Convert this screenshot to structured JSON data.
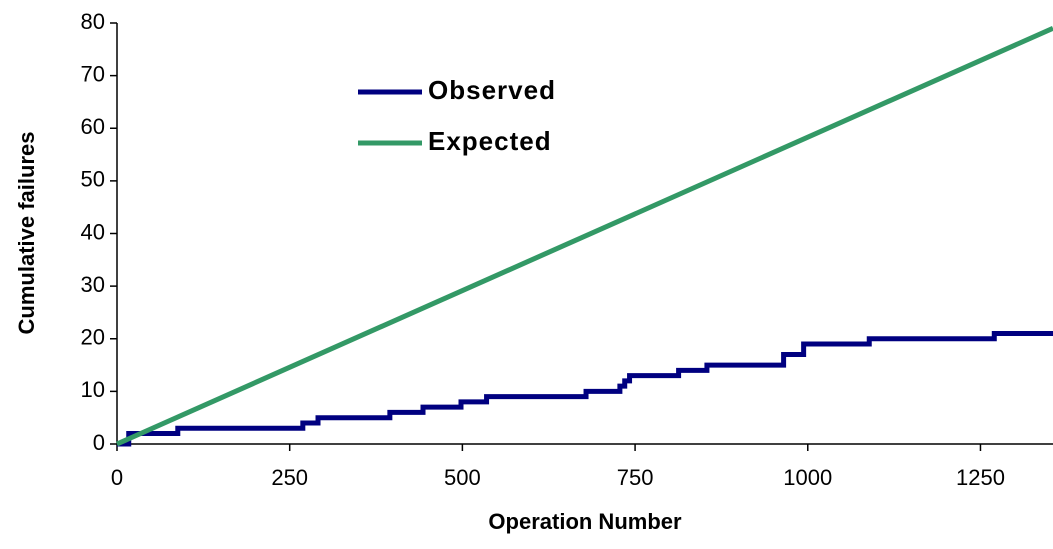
{
  "chart_data": {
    "type": "line",
    "xlabel": "Operation Number",
    "ylabel": "Cumulative failures",
    "xlim": [
      0,
      1355
    ],
    "ylim": [
      0,
      80
    ],
    "xticks": [
      0,
      250,
      500,
      750,
      1000,
      1250
    ],
    "yticks": [
      0,
      10,
      20,
      30,
      40,
      50,
      60,
      70,
      80
    ],
    "series": [
      {
        "name": "Observed",
        "color": "#000080",
        "x": [
          0,
          17,
          17,
          88,
          88,
          269,
          269,
          291,
          291,
          395,
          395,
          443,
          443,
          498,
          498,
          535,
          535,
          679,
          679,
          728,
          728,
          735,
          735,
          742,
          742,
          813,
          813,
          854,
          854,
          965,
          965,
          994,
          994,
          1089,
          1089,
          1270,
          1270,
          1355
        ],
        "values": [
          0,
          0,
          2,
          2,
          3,
          3,
          4,
          4,
          5,
          5,
          6,
          6,
          7,
          7,
          8,
          8,
          9,
          9,
          10,
          10,
          11,
          11,
          12,
          12,
          13,
          13,
          14,
          14,
          15,
          15,
          17,
          17,
          19,
          19,
          20,
          20,
          21,
          21
        ]
      },
      {
        "name": "Expected",
        "color": "#339966",
        "x": [
          0,
          1355
        ],
        "values": [
          0,
          79
        ]
      }
    ]
  }
}
